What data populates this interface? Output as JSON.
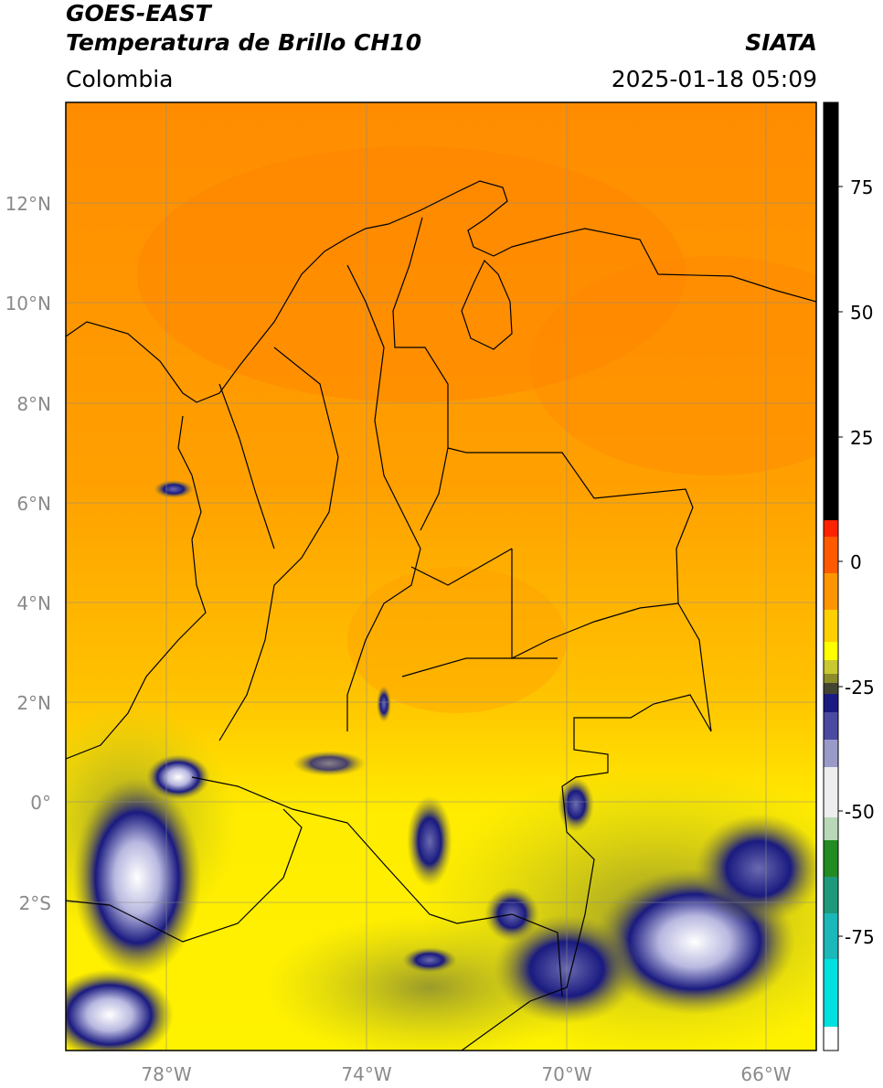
{
  "header": {
    "satellite": "GOES-EAST",
    "product": "Temperatura de Brillo CH10",
    "region": "Colombia",
    "agency": "SIATA",
    "datetime": "2025-01-18 05:09"
  },
  "map": {
    "lat_labels": [
      "12°N",
      "10°N",
      "8°N",
      "6°N",
      "4°N",
      "2°N",
      "0°",
      "2°S"
    ],
    "lon_labels": [
      "78°W",
      "74°W",
      "70°W",
      "66°W"
    ],
    "extent": {
      "lon": [
        -80,
        -65
      ],
      "lat": [
        -4.9,
        14
      ]
    }
  },
  "colorbar": {
    "ticks": [
      "75",
      "50",
      "25",
      "0",
      "-25",
      "-50",
      "-75"
    ],
    "range": [
      -95,
      90
    ],
    "colors": {
      "warm_black": "#000000",
      "red": "#ff2200",
      "orange": "#ff8c00",
      "yellow": "#ffff00",
      "olive": "#8c8c2a",
      "navy": "#1a1a80",
      "white": "#ffffff",
      "green": "#228b22",
      "cyan": "#00e0e0"
    }
  }
}
